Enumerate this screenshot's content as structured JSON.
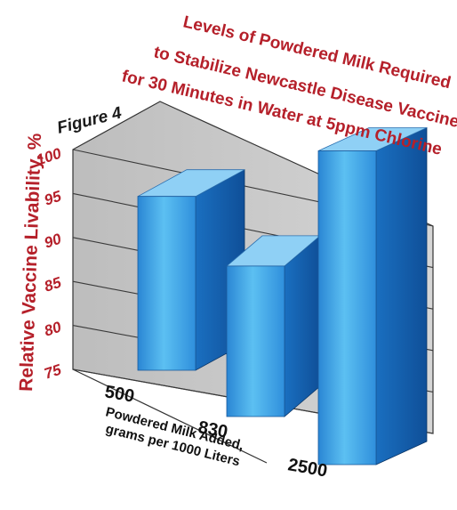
{
  "chart_data": {
    "type": "bar",
    "figure_label": "Figure 4",
    "title_lines": [
      "Levels of Powdered Milk Required",
      "to Stabilize Newcastle Disease Vaccine",
      "for 30 Minutes in Water at 5ppm Chlorine"
    ],
    "ylabel": "Relative Vaccine Livability, %",
    "xlabel_lines": [
      "Powdered Milk Added,",
      "grams per 1000 Liters"
    ],
    "categories": [
      "500",
      "830",
      "2500"
    ],
    "values": [
      88,
      86,
      100
    ],
    "ylim": [
      75,
      100
    ],
    "yticks": [
      "75",
      "80",
      "85",
      "90",
      "95",
      "100"
    ],
    "grid": true,
    "colors": {
      "title": "#b5202a",
      "bar_front": "#3b9fe3",
      "bar_side": "#1560b0",
      "bar_top": "#8fd0f5",
      "back_wall": "#c9c9c9",
      "floor": "#dcdcdc"
    }
  }
}
